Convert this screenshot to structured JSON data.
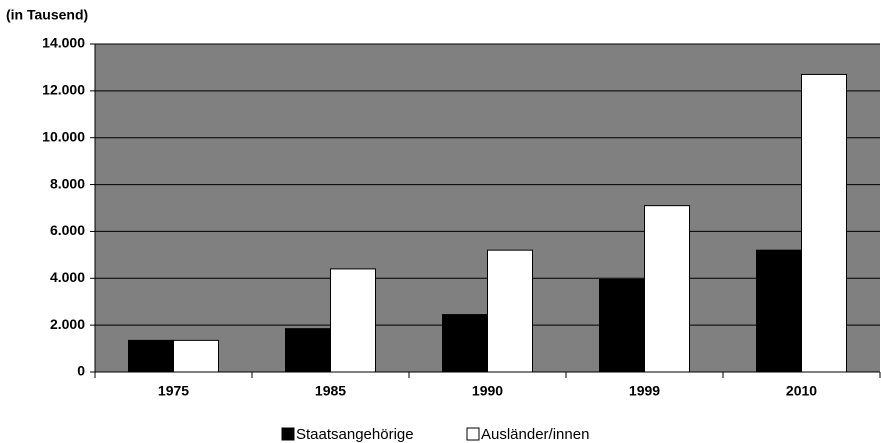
{
  "chart_data": {
    "type": "bar",
    "y_axis_label": "(in Tausend)",
    "categories": [
      "1975",
      "1985",
      "1990",
      "1999",
      "2010"
    ],
    "series": [
      {
        "name": "Staatsangehörige",
        "color": "#000000",
        "values": [
          1350,
          1850,
          2450,
          3950,
          5200
        ]
      },
      {
        "name": "Ausländer/innen",
        "color": "#ffffff",
        "values": [
          1350,
          4400,
          5200,
          7100,
          12700
        ]
      }
    ],
    "ylim": [
      0,
      14000
    ],
    "yticks": [
      0,
      {
        "value": 2000,
        "label": "2.000"
      },
      {
        "value": 4000,
        "label": "4.000"
      },
      {
        "value": 6000,
        "label": "6.000"
      },
      {
        "value": 8000,
        "label": "8.000"
      },
      {
        "value": 10000,
        "label": "10.000"
      },
      {
        "value": 12000,
        "label": "12.000"
      },
      {
        "value": 14000,
        "label": "14.000"
      }
    ],
    "grid": true
  }
}
